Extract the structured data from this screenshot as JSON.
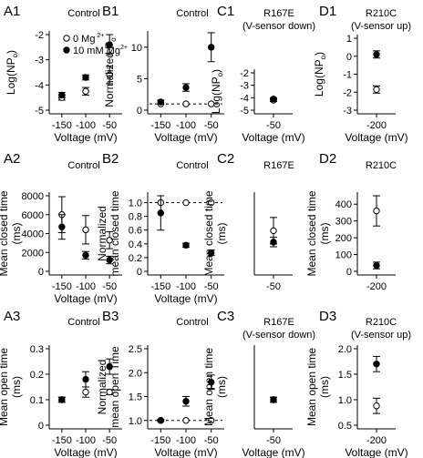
{
  "legend": {
    "open_label": "0 Mg",
    "open_sup": "2+",
    "filled_label": "10 mM Mg",
    "filled_sup": "2+"
  },
  "chart_data": [
    {
      "id": "A1",
      "type": "scatter",
      "title": "Control",
      "subtitle": "",
      "ylabel": "Log(NP",
      "ylabel_sub": "o",
      "ylabel_end": ")",
      "xlabel": "Voltage (mV)",
      "x": [
        -150,
        -100,
        -50
      ],
      "xticks": [
        "-150",
        "-100",
        "-50"
      ],
      "ylim": [
        -5,
        -2
      ],
      "yticks": [
        "-5",
        "-4",
        "-3",
        "-2"
      ],
      "series": [
        {
          "name": "0 Mg2+",
          "marker": "open",
          "values": [
            -4.5,
            -4.25,
            -3.6
          ],
          "err": [
            0.1,
            0.15,
            0.35
          ]
        },
        {
          "name": "10 mM Mg2+",
          "marker": "filled",
          "values": [
            -4.4,
            -3.7,
            -2.4
          ],
          "err": [
            0.1,
            0.1,
            0.4
          ]
        }
      ]
    },
    {
      "id": "B1",
      "type": "scatter",
      "title": "Control",
      "subtitle": "",
      "ylabel": "Normalized P",
      "ylabel_sub": "o",
      "ylabel_end": "",
      "xlabel": "Voltage (mV)",
      "x": [
        -150,
        -100,
        -50
      ],
      "xticks": [
        "-150",
        "-100",
        "-50"
      ],
      "ylim": [
        0,
        12
      ],
      "yticks": [
        "0",
        "5",
        "10"
      ],
      "ref_line": 1,
      "series": [
        {
          "name": "0 Mg2+",
          "marker": "open",
          "values": [
            1,
            1,
            1
          ],
          "err": [
            0,
            0,
            0
          ]
        },
        {
          "name": "10 mM Mg2+",
          "marker": "filled",
          "values": [
            1.3,
            3.6,
            10.0
          ],
          "err": [
            0.3,
            0.6,
            2.3
          ]
        }
      ]
    },
    {
      "id": "C1",
      "type": "scatter",
      "title": "R167E",
      "subtitle": "(V-sensor down)",
      "ylabel": "Log(NP",
      "ylabel_sub": "o",
      "ylabel_end": ")",
      "xlabel": "Voltage (mV)",
      "x": [
        -50
      ],
      "xticks": [
        "-50"
      ],
      "ylim": [
        -5,
        -2
      ],
      "yticks": [
        "-5",
        "-4",
        "-3",
        "-2"
      ],
      "series": [
        {
          "name": "0 Mg2+",
          "marker": "open",
          "values": [
            -4.2
          ],
          "err": [
            0.1
          ]
        },
        {
          "name": "10 mM Mg2+",
          "marker": "filled",
          "values": [
            -4.1
          ],
          "err": [
            0.1
          ]
        }
      ]
    },
    {
      "id": "D1",
      "type": "scatter",
      "title": "R210C",
      "subtitle": "(V-sensor up)",
      "ylabel": "Log(NP",
      "ylabel_sub": "o",
      "ylabel_end": ")",
      "xlabel": "Voltage (mV)",
      "x": [
        -200
      ],
      "xticks": [
        "-200"
      ],
      "ylim": [
        -3,
        1
      ],
      "yticks": [
        "-3",
        "-2",
        "-1",
        "0",
        "1"
      ],
      "series": [
        {
          "name": "0 Mg2+",
          "marker": "open",
          "values": [
            -1.85
          ],
          "err": [
            0.2
          ]
        },
        {
          "name": "10 mM Mg2+",
          "marker": "filled",
          "values": [
            0.1
          ],
          "err": [
            0.2
          ]
        }
      ]
    },
    {
      "id": "A2",
      "type": "scatter",
      "title": "Control",
      "subtitle": "",
      "ylabel": "Mean closed time",
      "ylabel2": "(ms)",
      "xlabel": "Voltage (mV)",
      "x": [
        -150,
        -100,
        -50
      ],
      "xticks": [
        "-150",
        "-100",
        "-50"
      ],
      "ylim": [
        0,
        8000
      ],
      "yticks": [
        "0",
        "2000",
        "4000",
        "6000",
        "8000"
      ],
      "series": [
        {
          "name": "0 Mg2+",
          "marker": "open",
          "values": [
            6000,
            4400,
            3300
          ],
          "err": [
            1900,
            1500,
            900
          ]
        },
        {
          "name": "10 mM Mg2+",
          "marker": "filled",
          "values": [
            4700,
            1700,
            1200
          ],
          "err": [
            1300,
            400,
            400
          ]
        }
      ]
    },
    {
      "id": "B2",
      "type": "scatter",
      "title": "Control",
      "subtitle": "",
      "ylabel": "Normalized",
      "ylabel2": "mean closed time",
      "xlabel": "Voltage (mV)",
      "x": [
        -150,
        -100,
        -50
      ],
      "xticks": [
        "-150",
        "-100",
        "-50"
      ],
      "ylim": [
        0,
        1.1
      ],
      "yticks": [
        "0",
        "0.2",
        "0.4",
        "0.6",
        "0.8",
        "1.0"
      ],
      "ref_line": 1,
      "series": [
        {
          "name": "0 Mg2+",
          "marker": "open",
          "values": [
            1,
            1,
            1
          ],
          "err": [
            0,
            0,
            0
          ]
        },
        {
          "name": "10 mM Mg2+",
          "marker": "filled",
          "values": [
            0.85,
            0.38,
            0.27
          ],
          "err": [
            0.25,
            0.03,
            0.04
          ]
        }
      ]
    },
    {
      "id": "C2",
      "type": "scatter",
      "title": "R167E",
      "subtitle": "",
      "ylabel": "Mean closed time",
      "ylabel2": "(ms)",
      "xlabel": "",
      "subtitle_under": "",
      "x": [
        -50
      ],
      "xticks": [
        "-50"
      ],
      "ylim": [
        0,
        8000
      ],
      "yticks": [],
      "series": [
        {
          "name": "0 Mg2+",
          "marker": "open",
          "values": [
            4300
          ],
          "err": [
            1400
          ]
        },
        {
          "name": "10 mM Mg2+",
          "marker": "filled",
          "values": [
            3100
          ],
          "err": [
            500
          ]
        }
      ]
    },
    {
      "id": "D2",
      "type": "scatter",
      "title": "R210C",
      "subtitle": "",
      "ylabel": "Mean closed time",
      "ylabel2": "(ms)",
      "xlabel": "",
      "x": [
        -200
      ],
      "xticks": [
        "-200"
      ],
      "ylim": [
        0,
        450
      ],
      "yticks": [
        "0",
        "100",
        "200",
        "300",
        "400"
      ],
      "series": [
        {
          "name": "0 Mg2+",
          "marker": "open",
          "values": [
            360
          ],
          "err": [
            90
          ]
        },
        {
          "name": "10 mM Mg2+",
          "marker": "filled",
          "values": [
            35
          ],
          "err": [
            20
          ]
        }
      ]
    },
    {
      "id": "A3",
      "type": "scatter",
      "title": "Control",
      "subtitle": "",
      "ylabel": "Mean open time",
      "ylabel2": "(ms)",
      "xlabel": "Voltage (mV)",
      "x": [
        -150,
        -100,
        -50
      ],
      "xticks": [
        "-150",
        "-100",
        "-50"
      ],
      "ylim": [
        0,
        0.3
      ],
      "yticks": [
        "0",
        "0.1",
        "0.2",
        "0.3"
      ],
      "series": [
        {
          "name": "0 Mg2+",
          "marker": "open",
          "values": [
            0.1,
            0.13,
            0.13
          ],
          "err": [
            0.01,
            0.02,
            0.01
          ]
        },
        {
          "name": "10 mM Mg2+",
          "marker": "filled",
          "values": [
            0.1,
            0.18,
            0.23
          ],
          "err": [
            0.01,
            0.03,
            0.03
          ]
        }
      ]
    },
    {
      "id": "B3",
      "type": "scatter",
      "title": "Control",
      "subtitle": "",
      "ylabel": "Normalized",
      "ylabel2": "mean open Time",
      "xlabel": "Voltage (mV)",
      "x": [
        -150,
        -100,
        -50
      ],
      "xticks": [
        "-150",
        "-100",
        "-50"
      ],
      "ylim": [
        0.9,
        2.5
      ],
      "yticks": [
        "1.0",
        "1.5",
        "2.0",
        "2.5"
      ],
      "ref_line": 1,
      "series": [
        {
          "name": "0 Mg2+",
          "marker": "open",
          "values": [
            1,
            1,
            1
          ],
          "err": [
            0,
            0,
            0
          ]
        },
        {
          "name": "10 mM Mg2+",
          "marker": "filled",
          "values": [
            1.0,
            1.4,
            1.8
          ],
          "err": [
            0.02,
            0.1,
            0.15
          ]
        }
      ]
    },
    {
      "id": "C3",
      "type": "scatter",
      "title": "R167E",
      "subtitle": "(V-sensor down)",
      "ylabel": "Mean open time",
      "ylabel2": "(ms)",
      "xlabel": "Voltage (mV)",
      "x": [
        -50
      ],
      "xticks": [
        "-50"
      ],
      "ylim": [
        0,
        0.3
      ],
      "yticks": [],
      "series": [
        {
          "name": "0 Mg2+",
          "marker": "open",
          "values": [
            0.1
          ],
          "err": [
            0.01
          ]
        },
        {
          "name": "10 mM Mg2+",
          "marker": "filled",
          "values": [
            0.1
          ],
          "err": [
            0.01
          ]
        }
      ]
    },
    {
      "id": "D3",
      "type": "scatter",
      "title": "R210C",
      "subtitle": "(V-sensor up)",
      "ylabel": "Mean open time",
      "ylabel2": "(ms)",
      "xlabel": "Voltage (mV)",
      "x": [
        -200
      ],
      "xticks": [
        "-200"
      ],
      "ylim": [
        0.5,
        2.0
      ],
      "yticks": [
        "0.5",
        "1.0",
        "1.5",
        "2.0"
      ],
      "series": [
        {
          "name": "0 Mg2+",
          "marker": "open",
          "values": [
            0.88
          ],
          "err": [
            0.15
          ]
        },
        {
          "name": "10 mM Mg2+",
          "marker": "filled",
          "values": [
            1.7
          ],
          "err": [
            0.15
          ]
        }
      ]
    }
  ]
}
